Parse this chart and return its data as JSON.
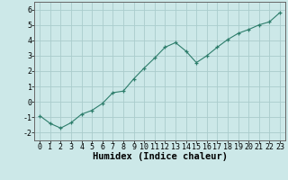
{
  "x": [
    0,
    1,
    2,
    3,
    4,
    5,
    6,
    7,
    8,
    9,
    10,
    11,
    12,
    13,
    14,
    15,
    16,
    17,
    18,
    19,
    20,
    21,
    22,
    23
  ],
  "y": [
    -0.9,
    -1.4,
    -1.7,
    -1.35,
    -0.8,
    -0.55,
    -0.1,
    0.6,
    0.7,
    1.5,
    2.2,
    2.85,
    3.55,
    3.85,
    3.3,
    2.55,
    3.0,
    3.55,
    4.05,
    4.45,
    4.7,
    5.0,
    5.2,
    5.8
  ],
  "xlabel": "Humidex (Indice chaleur)",
  "xlim": [
    -0.5,
    23.5
  ],
  "ylim": [
    -2.5,
    6.5
  ],
  "yticks": [
    -2,
    -1,
    0,
    1,
    2,
    3,
    4,
    5,
    6
  ],
  "xticks": [
    0,
    1,
    2,
    3,
    4,
    5,
    6,
    7,
    8,
    9,
    10,
    11,
    12,
    13,
    14,
    15,
    16,
    17,
    18,
    19,
    20,
    21,
    22,
    23
  ],
  "line_color": "#2d7d6b",
  "marker": "+",
  "bg_color": "#cce8e8",
  "grid_color": "#aacccc",
  "spine_color": "#666666",
  "label_fontsize": 6.0,
  "xlabel_fontsize": 7.5
}
